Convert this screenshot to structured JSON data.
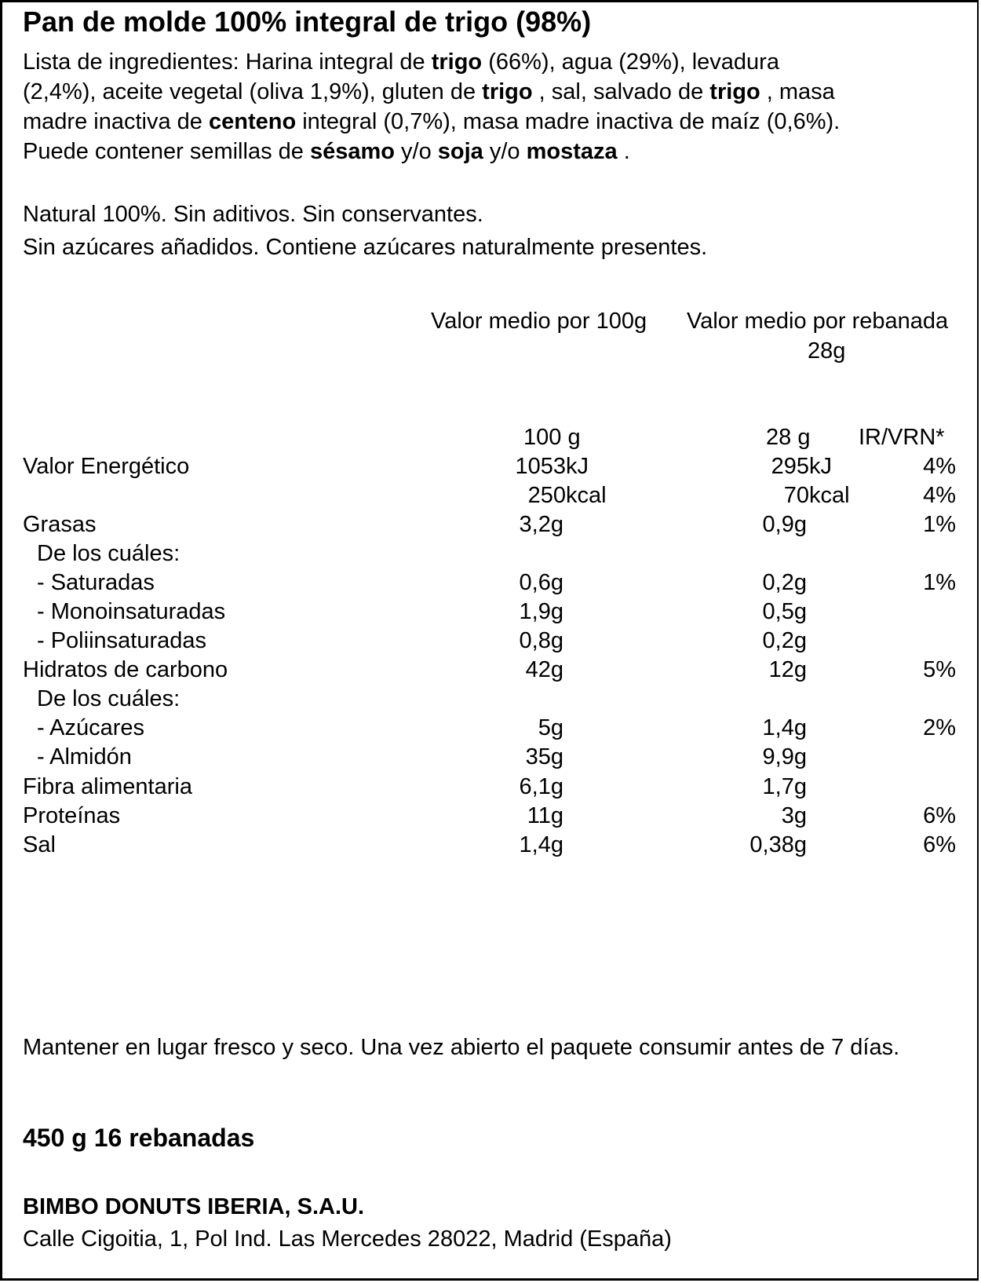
{
  "title": "Pan de molde 100% integral de trigo (98%)",
  "ingredients": {
    "line1": [
      {
        "t": "Lista de ingredientes: Harina integral de ",
        "b": false
      },
      {
        "t": "trigo",
        "b": true
      },
      {
        "t": " (66%), agua (29%), levadura",
        "b": false
      }
    ],
    "line2": [
      {
        "t": "(2,4%), aceite vegetal (oliva 1,9%), gluten de ",
        "b": false
      },
      {
        "t": "trigo",
        "b": true
      },
      {
        "t": " , sal, salvado de ",
        "b": false
      },
      {
        "t": "trigo",
        "b": true
      },
      {
        "t": " , masa",
        "b": false
      }
    ],
    "line3": [
      {
        "t": "madre inactiva de ",
        "b": false
      },
      {
        "t": "centeno",
        "b": true
      },
      {
        "t": " integral (0,7%), masa madre inactiva de maíz (0,6%).",
        "b": false
      }
    ],
    "line4": [
      {
        "t": "Puede contener semillas de ",
        "b": false
      },
      {
        "t": "sésamo",
        "b": true
      },
      {
        "t": " y/o ",
        "b": false
      },
      {
        "t": "soja",
        "b": true
      },
      {
        "t": " y/o ",
        "b": false
      },
      {
        "t": "mostaza",
        "b": true
      },
      {
        "t": " .",
        "b": false
      }
    ]
  },
  "claims": {
    "line1": "Natural 100%. Sin aditivos. Sin conservantes.",
    "line2": "Sin azúcares añadidos. Contiene azúcares naturalmente presentes."
  },
  "table": {
    "header_100g": "Valor medio por 100g",
    "header_slice_line1": "Valor medio por rebanada",
    "header_slice_line2": "28g",
    "col_100": "100 g",
    "col_28": "28 g",
    "col_ir": "IR/VRN*",
    "rows": [
      {
        "name": "Valor  Energético",
        "v100": "1053",
        "u100": "kJ",
        "v28": "295",
        "u28": "kJ",
        "ir": "4%"
      },
      {
        "name": "",
        "v100": "250",
        "u100": "kcal",
        "v28": "70",
        "u28": "kcal",
        "ir": "4%"
      },
      {
        "name": "Grasas",
        "v100": "3,2g",
        "u100": "",
        "v28": "0,9g",
        "u28": "",
        "ir": "1%"
      },
      {
        "name": "De los  cuáles:",
        "v100": "",
        "u100": "",
        "v28": "",
        "u28": "",
        "ir": ""
      },
      {
        "name": "-  Saturadas",
        "v100": "0,6g",
        "u100": "",
        "v28": "0,2g",
        "u28": "",
        "ir": "1%"
      },
      {
        "name": "-  Monoinsaturadas",
        "v100": "1,9g",
        "u100": "",
        "v28": "0,5g",
        "u28": "",
        "ir": ""
      },
      {
        "name": "-  Poliinsaturadas",
        "v100": "0,8g",
        "u100": "",
        "v28": "0,2g",
        "u28": "",
        "ir": ""
      },
      {
        "name": "Hidratos  de  carbono",
        "v100": "42g",
        "u100": "",
        "v28": "12g",
        "u28": "",
        "ir": "5%"
      },
      {
        "name": "De los  cuáles:",
        "v100": "",
        "u100": "",
        "v28": "",
        "u28": "",
        "ir": ""
      },
      {
        "name": "- Azúcares",
        "v100": "5g",
        "u100": "",
        "v28": "1,4g",
        "u28": "",
        "ir": "2%"
      },
      {
        "name": "- Almidón",
        "v100": "35g",
        "u100": "",
        "v28": "9,9g",
        "u28": "",
        "ir": ""
      },
      {
        "name": "Fibra  alimentaria",
        "v100": "6,1g",
        "u100": "",
        "v28": "1,7g",
        "u28": "",
        "ir": ""
      },
      {
        "name": "Proteínas",
        "v100": "11g",
        "u100": "",
        "v28": "3g",
        "u28": "",
        "ir": "6%"
      },
      {
        "name": "Sal",
        "v100": "1,4g",
        "u100": "",
        "v28": "0,38g",
        "u28": "",
        "ir": "6%"
      }
    ]
  },
  "storage": "Mantener en lugar fresco y seco. Una vez abierto el paquete consumir antes de 7 días.",
  "net_weight": "450 g  16 rebanadas",
  "company_name": "BIMBO DONUTS IBERIA, S.A.U.",
  "company_address": "Calle Cigoitia, 1, Pol Ind. Las Mercedes 28022, Madrid (España)"
}
